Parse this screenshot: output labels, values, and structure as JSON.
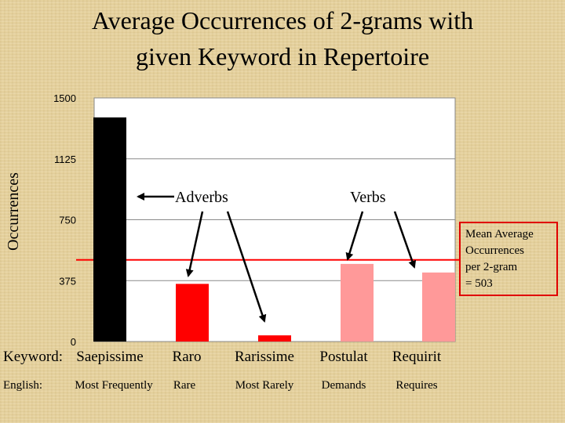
{
  "chart_data": {
    "type": "bar",
    "title_lines": [
      "Average Occurrences of 2-grams with",
      "given Keyword in Repertoire"
    ],
    "ylabel": "Occurrences",
    "ylim": [
      0,
      1500
    ],
    "yticks": [
      "0",
      "375",
      "750",
      "1125",
      "1500"
    ],
    "ytick_values": [
      0,
      375,
      750,
      1125,
      1500
    ],
    "grid": true,
    "keyword_prefix": "Keyword:",
    "english_prefix": "English:",
    "categories": [
      "Saepissime",
      "Raro",
      "Rarissime",
      "Postulat",
      "Requirit"
    ],
    "english": [
      "Most Frequently",
      "Rare",
      "Most Rarely",
      "Demands",
      "Requires"
    ],
    "values": [
      1380,
      355,
      38,
      478,
      425
    ],
    "colors": [
      "#000000",
      "#ff0000",
      "#ff0000",
      "#ff9999",
      "#ff9999"
    ],
    "mean_line": {
      "value": 503,
      "color": "#ff0000",
      "label_lines": [
        "Mean Average",
        "Occurrences",
        "per 2-gram",
        "= 503"
      ]
    },
    "annotations": {
      "adverbs": "Adverbs",
      "verbs": "Verbs"
    }
  }
}
